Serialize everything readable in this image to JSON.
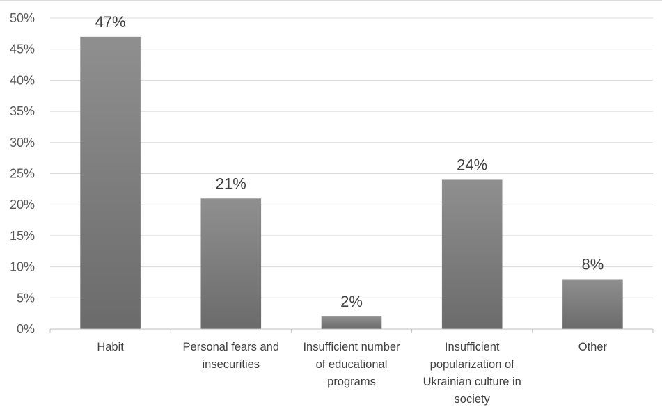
{
  "chart_data": {
    "type": "bar",
    "title": "",
    "xlabel": "",
    "ylabel": "",
    "categories": [
      [
        "Habit"
      ],
      [
        "Personal fears and",
        "insecurities"
      ],
      [
        "Insufficient number",
        "of educational",
        "programs"
      ],
      [
        "Insufficient",
        "popularization of",
        "Ukrainian culture in",
        "society"
      ],
      [
        "Other"
      ]
    ],
    "values": [
      47,
      21,
      2,
      24,
      8
    ],
    "data_labels": [
      "47%",
      "21%",
      "2%",
      "24%",
      "8%"
    ],
    "ylim": [
      0,
      50
    ],
    "yticks": [
      0,
      5,
      10,
      15,
      20,
      25,
      30,
      35,
      40,
      45,
      50
    ],
    "ytick_labels": [
      "0%",
      "5%",
      "10%",
      "15%",
      "20%",
      "25%",
      "30%",
      "35%",
      "40%",
      "45%",
      "50%"
    ],
    "grid": true,
    "legend": "none",
    "colors": {
      "bar_top": "#8f8f8f",
      "bar_bottom": "#6b6b6b"
    }
  }
}
